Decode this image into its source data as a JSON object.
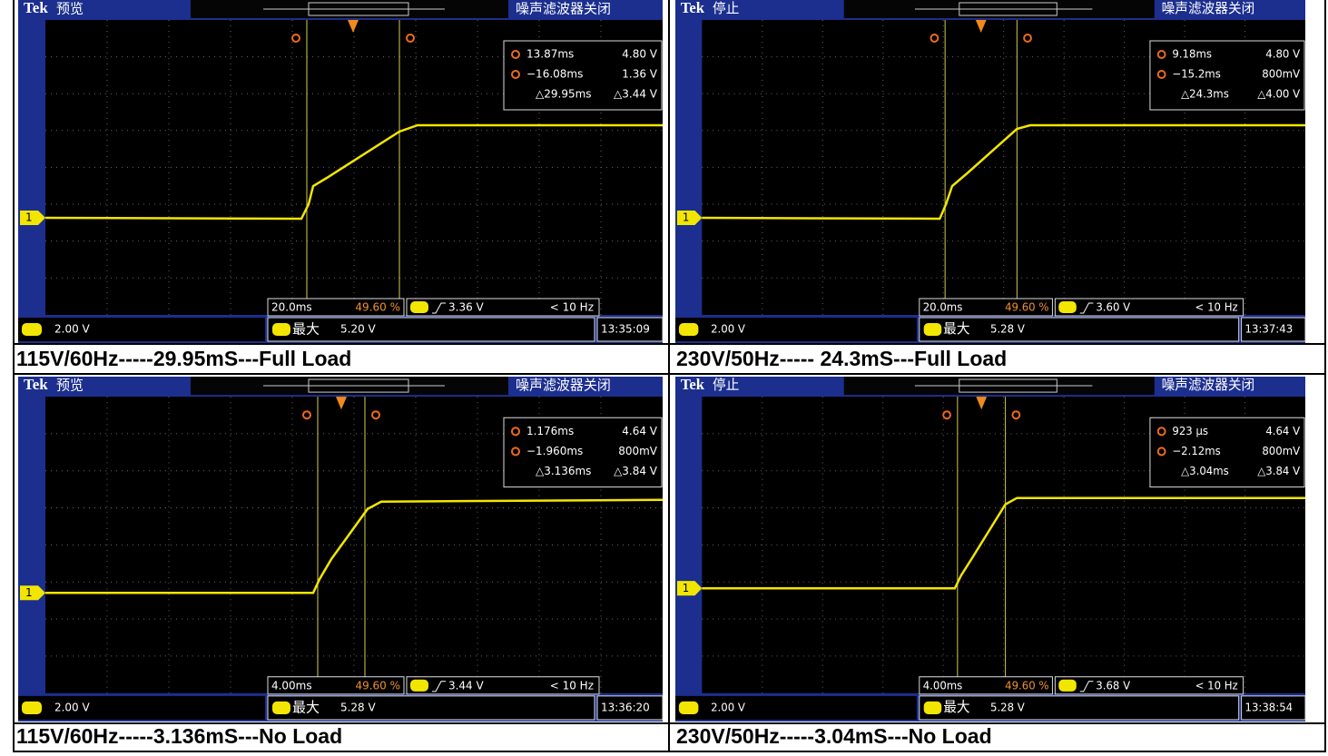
{
  "panels": [
    {
      "brand": "Tek",
      "state": "预览",
      "filter": "噪声滤波器关闭",
      "channel": "1",
      "cursor_a_time": "13.87ms",
      "cursor_a_volt": "4.80 V",
      "cursor_b_time": "−16.08ms",
      "cursor_b_volt": "1.36 V",
      "delta_time": "△29.95ms",
      "delta_volt": "△3.44 V",
      "timebase": "20.0ms",
      "trigger_position": "49.60 %",
      "trigger_level": "3.36 V",
      "frequency": "< 10 Hz",
      "channel_scale": "2.00 V",
      "max_label": "最大",
      "max_value": "5.20 V",
      "clock": "13:35:09",
      "caption": "115V/60Hz-----29.95mS---Full Load"
    },
    {
      "brand": "Tek",
      "state": "停止",
      "filter": "噪声滤波器关闭",
      "channel": "1",
      "cursor_a_time": "9.18ms",
      "cursor_a_volt": "4.80 V",
      "cursor_b_time": "−15.2ms",
      "cursor_b_volt": "800mV",
      "delta_time": "△24.3ms",
      "delta_volt": "△4.00 V",
      "timebase": "20.0ms",
      "trigger_position": "49.60 %",
      "trigger_level": "3.60 V",
      "frequency": "< 10 Hz",
      "channel_scale": "2.00 V",
      "max_label": "最大",
      "max_value": "5.28 V",
      "clock": "13:37:43",
      "caption": "230V/50Hz----- 24.3mS---Full Load"
    },
    {
      "brand": "Tek",
      "state": "预览",
      "filter": "噪声滤波器关闭",
      "channel": "1",
      "cursor_a_time": "1.176ms",
      "cursor_a_volt": "4.64 V",
      "cursor_b_time": "−1.960ms",
      "cursor_b_volt": "800mV",
      "delta_time": "△3.136ms",
      "delta_volt": "△3.84 V",
      "timebase": "4.00ms",
      "trigger_position": "49.60 %",
      "trigger_level": "3.44 V",
      "frequency": "< 10 Hz",
      "channel_scale": "2.00 V",
      "max_label": "最大",
      "max_value": "5.28 V",
      "clock": "13:36:20",
      "caption": "115V/60Hz-----3.136mS---No Load"
    },
    {
      "brand": "Tek",
      "state": "停止",
      "filter": "噪声滤波器关闭",
      "channel": "1",
      "cursor_a_time": "923 µs",
      "cursor_a_volt": "4.64 V",
      "cursor_b_time": "−2.12ms",
      "cursor_b_volt": "800mV",
      "delta_time": "△3.04ms",
      "delta_volt": "△3.84 V",
      "timebase": "4.00ms",
      "trigger_position": "49.60 %",
      "trigger_level": "3.68 V",
      "frequency": "< 10 Hz",
      "channel_scale": "2.00 V",
      "max_label": "最大",
      "max_value": "5.28 V",
      "clock": "13:38:54",
      "caption": "230V/50Hz-----3.04mS---No Load"
    }
  ]
}
